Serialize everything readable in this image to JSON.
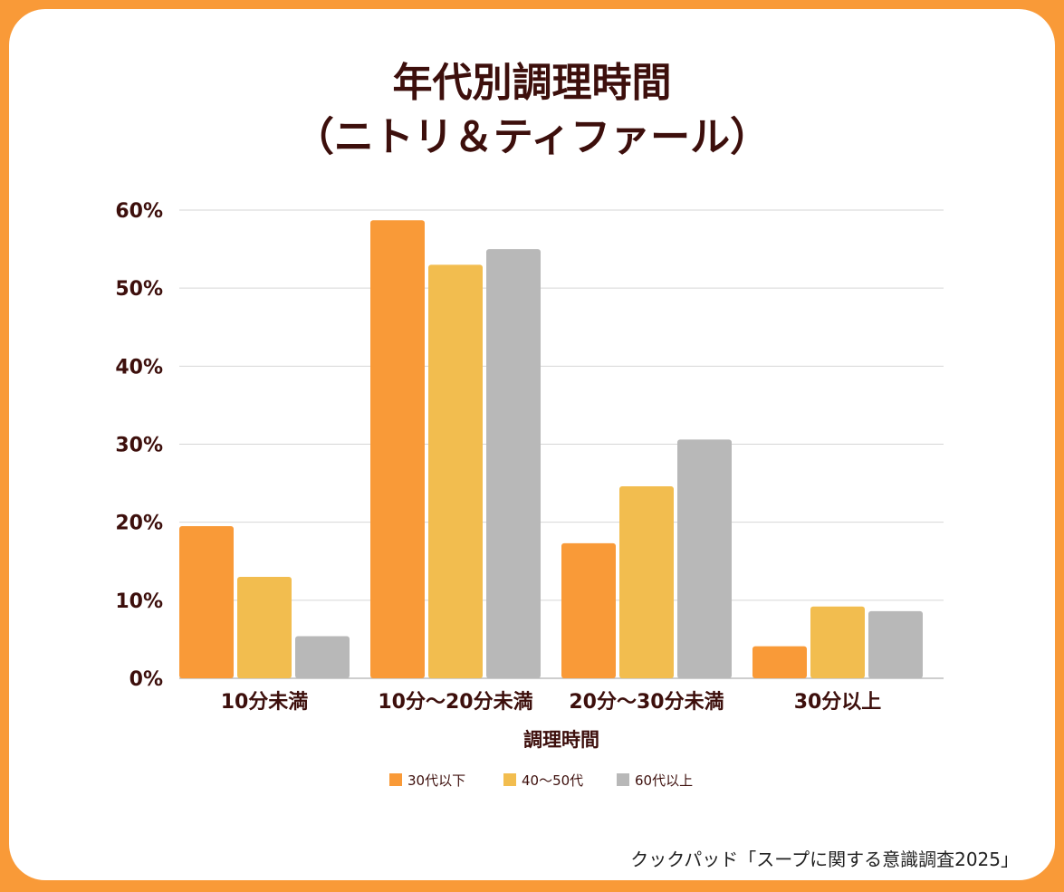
{
  "chart_data": {
    "type": "bar",
    "title_line1": "年代別調理時間",
    "title_line2": "（ニトリ＆ティファール）",
    "xlabel": "調理時間",
    "ylabel": "",
    "categories": [
      "10分未満",
      "10分〜20分未満",
      "20分〜30分未満",
      "30分以上"
    ],
    "series": [
      {
        "name": "30代以下",
        "color": "#f99a38",
        "values": [
          19.5,
          58.7,
          17.3,
          4.1
        ]
      },
      {
        "name": "40〜50代",
        "color": "#f2bd4f",
        "values": [
          13.0,
          53.0,
          24.6,
          9.2
        ]
      },
      {
        "name": "60代以上",
        "color": "#b8b8b8",
        "values": [
          5.4,
          55.0,
          30.6,
          8.6
        ]
      }
    ],
    "ylim": [
      0,
      60
    ],
    "yticks": [
      0,
      10,
      20,
      30,
      40,
      50,
      60
    ],
    "ytick_labels": [
      "0%",
      "10%",
      "20%",
      "30%",
      "40%",
      "50%",
      "60%"
    ],
    "grid": true,
    "legend_position": "bottom-center"
  },
  "source": "クックパッド「スープに関する意識調査2025」"
}
